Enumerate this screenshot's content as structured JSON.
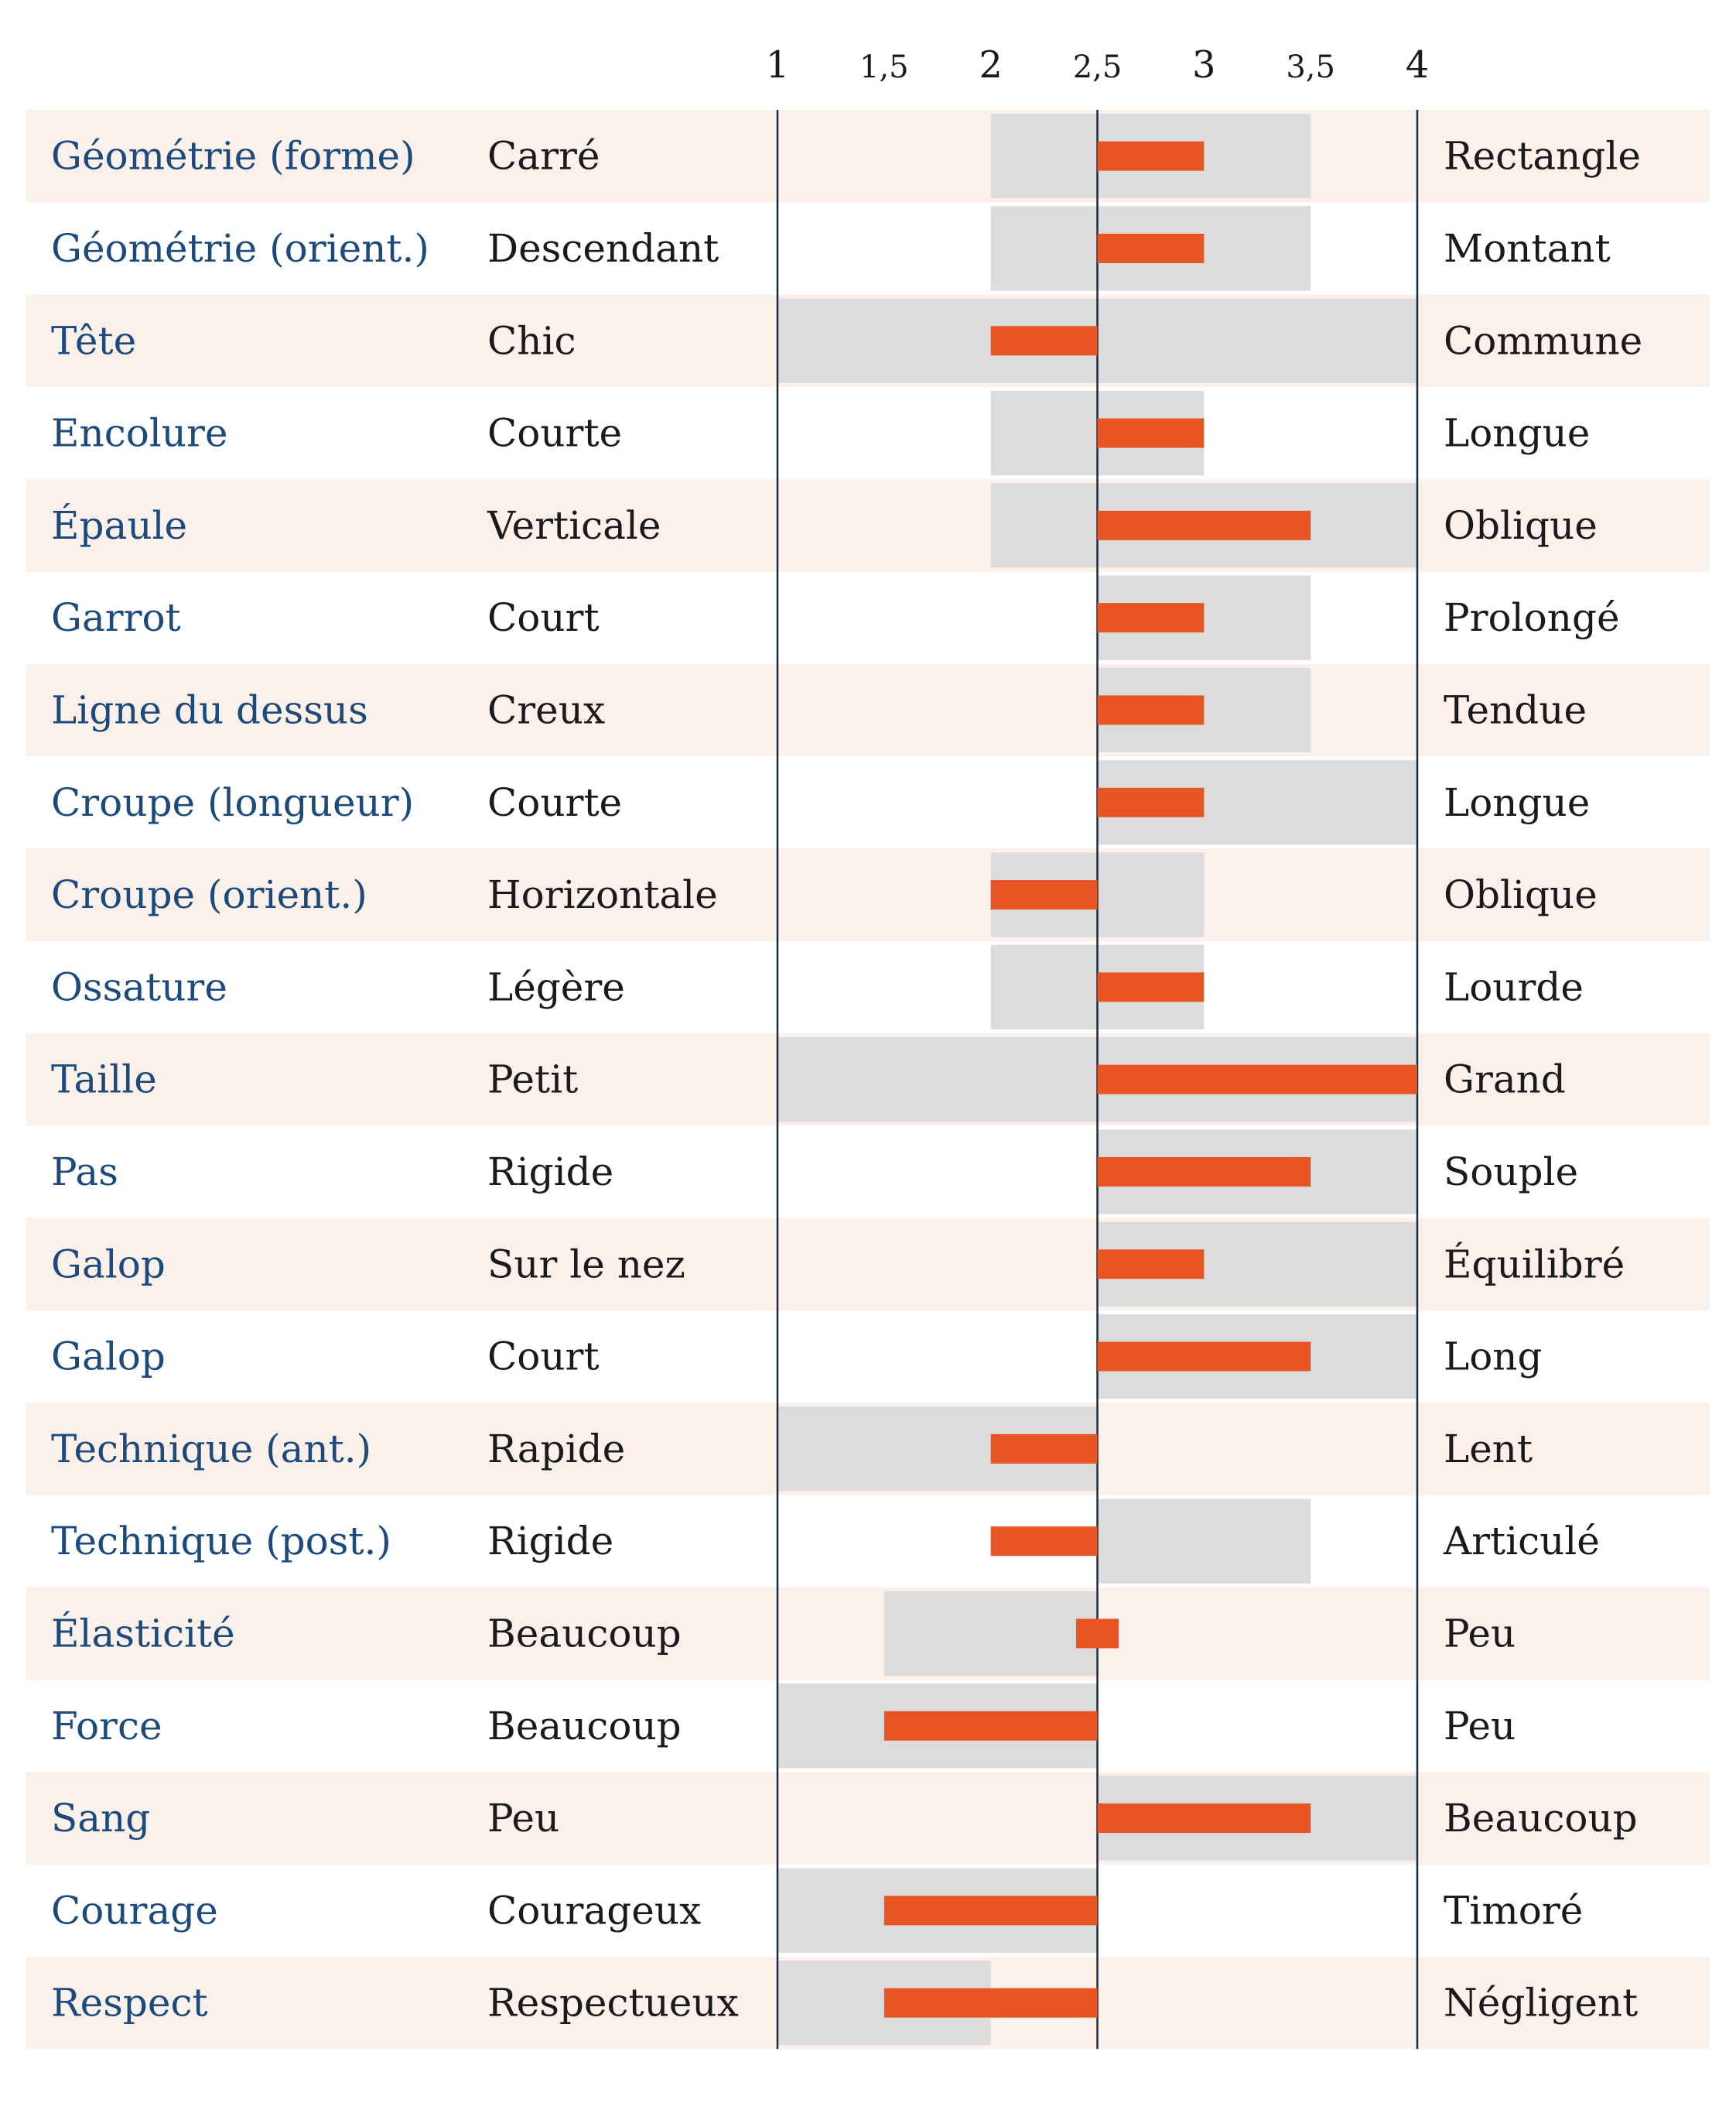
{
  "chart_data": {
    "type": "bar",
    "title": "",
    "xlabel": "",
    "ylabel": "",
    "xlim": [
      1,
      4
    ],
    "x_ticks": [
      "1",
      "1,5",
      "2",
      "2,5",
      "3",
      "3,5",
      "4"
    ],
    "x_tick_values": [
      1,
      1.5,
      2,
      2.5,
      3,
      3.5,
      4
    ],
    "center_value": 2.5,
    "rows": [
      {
        "trait": "Géométrie (forme)",
        "low_label": "Carré",
        "high_label": "Rectangle",
        "value": 3.0,
        "range": [
          2.0,
          3.5
        ]
      },
      {
        "trait": "Géométrie (orient.)",
        "low_label": "Descendant",
        "high_label": "Montant",
        "value": 3.0,
        "range": [
          2.0,
          3.5
        ]
      },
      {
        "trait": "Tête",
        "low_label": "Chic",
        "high_label": "Commune",
        "value": 2.0,
        "range": [
          1.0,
          4.0
        ]
      },
      {
        "trait": "Encolure",
        "low_label": "Courte",
        "high_label": "Longue",
        "value": 3.0,
        "range": [
          2.0,
          3.0
        ]
      },
      {
        "trait": "Épaule",
        "low_label": "Verticale",
        "high_label": "Oblique",
        "value": 3.5,
        "range": [
          2.0,
          4.0
        ]
      },
      {
        "trait": "Garrot",
        "low_label": "Court",
        "high_label": "Prolongé",
        "value": 3.0,
        "range": [
          2.5,
          3.5
        ]
      },
      {
        "trait": "Ligne du dessus",
        "low_label": "Creux",
        "high_label": "Tendue",
        "value": 3.0,
        "range": [
          2.5,
          3.5
        ]
      },
      {
        "trait": "Croupe (longueur)",
        "low_label": "Courte",
        "high_label": "Longue",
        "value": 3.0,
        "range": [
          2.5,
          4.0
        ]
      },
      {
        "trait": "Croupe (orient.)",
        "low_label": "Horizontale",
        "high_label": "Oblique",
        "value": 2.0,
        "range": [
          2.0,
          3.0
        ]
      },
      {
        "trait": "Ossature",
        "low_label": "Légère",
        "high_label": "Lourde",
        "value": 3.0,
        "range": [
          2.0,
          3.0
        ]
      },
      {
        "trait": "Taille",
        "low_label": "Petit",
        "high_label": "Grand",
        "value": 4.0,
        "range": [
          1.0,
          4.0
        ]
      },
      {
        "trait": "Pas",
        "low_label": "Rigide",
        "high_label": "Souple",
        "value": 3.5,
        "range": [
          2.5,
          4.0
        ]
      },
      {
        "trait": "Galop",
        "low_label": "Sur le nez",
        "high_label": "Équilibré",
        "value": 3.0,
        "range": [
          2.5,
          4.0
        ]
      },
      {
        "trait": "Galop",
        "low_label": "Court",
        "high_label": "Long",
        "value": 3.5,
        "range": [
          2.5,
          4.0
        ]
      },
      {
        "trait": "Technique (ant.)",
        "low_label": "Rapide",
        "high_label": "Lent",
        "value": 2.0,
        "range": [
          1.0,
          2.5
        ]
      },
      {
        "trait": "Technique (post.)",
        "low_label": "Rigide",
        "high_label": "Articulé",
        "value": 2.0,
        "range": [
          2.5,
          3.5
        ]
      },
      {
        "trait": "Élasticité",
        "low_label": "Beaucoup",
        "high_label": "Peu",
        "value": 2.4,
        "value_end": 2.6,
        "range": [
          1.5,
          2.5
        ]
      },
      {
        "trait": "Force",
        "low_label": "Beaucoup",
        "high_label": "Peu",
        "value": 1.5,
        "range": [
          1.0,
          2.5
        ]
      },
      {
        "trait": "Sang",
        "low_label": "Peu",
        "high_label": "Beaucoup",
        "value": 3.5,
        "range": [
          2.5,
          4.0
        ]
      },
      {
        "trait": "Courage",
        "low_label": "Courageux",
        "high_label": "Timoré",
        "value": 1.5,
        "range": [
          1.0,
          2.5
        ]
      },
      {
        "trait": "Respect",
        "low_label": "Respectueux",
        "high_label": "Négligent",
        "value": 1.5,
        "range": [
          1.0,
          2.0
        ]
      }
    ],
    "grid": false,
    "legend": "none"
  },
  "colors": {
    "trait_text": "#1c4a7c",
    "label_text": "#1a1a1a",
    "stripe": "#fcf0eb",
    "range_band": "#dcdcdc",
    "bar": "#e85422",
    "axis_line": "#1a2a44"
  }
}
